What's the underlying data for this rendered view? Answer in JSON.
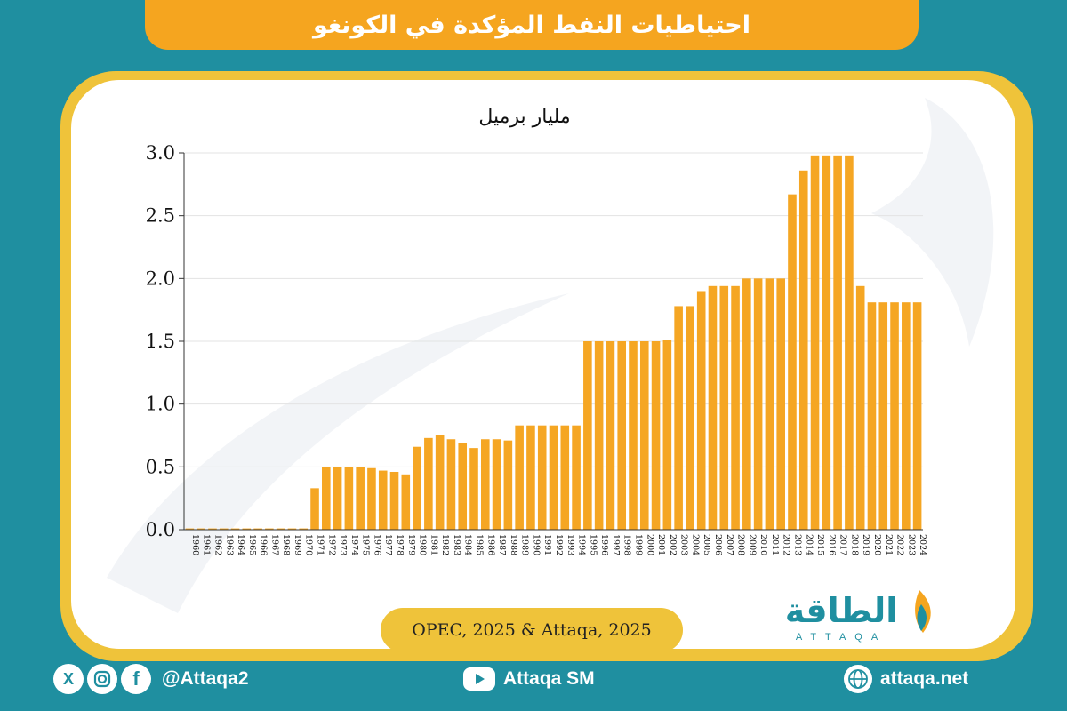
{
  "header": {
    "title": "احتياطيات النفط المؤكدة في الكونغو"
  },
  "source": {
    "text": "OPEC, 2025 & Attaqa, 2025"
  },
  "logo": {
    "arabic": "الطاقة",
    "latin": "ATTAQA"
  },
  "footer": {
    "social_handle": "@Attaqa2",
    "youtube_handle": "Attaqa SM",
    "website": "attaqa.net"
  },
  "colors": {
    "background": "#1f8fa0",
    "accent": "#f5a51f",
    "border": "#efc33a",
    "bar": "#f5a623"
  },
  "chart_data": {
    "type": "bar",
    "ylabel": "مليار برميل",
    "ylim": [
      0,
      3
    ],
    "yticks": [
      "0.0",
      "0.5",
      "1.0",
      "1.5",
      "2.0",
      "2.5",
      "3.0"
    ],
    "categories": [
      "1960",
      "1961",
      "1962",
      "1963",
      "1964",
      "1965",
      "1966",
      "1967",
      "1968",
      "1969",
      "1970",
      "1971",
      "1972",
      "1973",
      "1974",
      "1975",
      "1976",
      "1977",
      "1978",
      "1979",
      "1980",
      "1981",
      "1982",
      "1983",
      "1984",
      "1985",
      "1986",
      "1987",
      "1988",
      "1989",
      "1990",
      "1991",
      "1992",
      "1993",
      "1994",
      "1995",
      "1996",
      "1997",
      "1998",
      "1999",
      "2000",
      "2001",
      "2002",
      "2003",
      "2004",
      "2005",
      "2006",
      "2007",
      "2008",
      "2009",
      "2010",
      "2011",
      "2012",
      "2013",
      "2014",
      "2015",
      "2016",
      "2017",
      "2018",
      "2019",
      "2020",
      "2021",
      "2022",
      "2023",
      "2024"
    ],
    "values": [
      0.01,
      0.01,
      0.01,
      0.01,
      0.01,
      0.01,
      0.01,
      0.01,
      0.01,
      0.01,
      0.01,
      0.33,
      0.5,
      0.5,
      0.5,
      0.5,
      0.49,
      0.47,
      0.46,
      0.44,
      0.66,
      0.73,
      0.75,
      0.72,
      0.69,
      0.65,
      0.72,
      0.72,
      0.71,
      0.83,
      0.83,
      0.83,
      0.83,
      0.83,
      0.83,
      1.5,
      1.5,
      1.5,
      1.5,
      1.5,
      1.5,
      1.5,
      1.51,
      1.78,
      1.78,
      1.9,
      1.94,
      1.94,
      1.94,
      2.0,
      2.0,
      2.0,
      2.0,
      2.67,
      2.86,
      2.98,
      2.98,
      2.98,
      2.98,
      1.94,
      1.81,
      1.81,
      1.81,
      1.81,
      1.81
    ],
    "grid": true,
    "legend": "none"
  }
}
